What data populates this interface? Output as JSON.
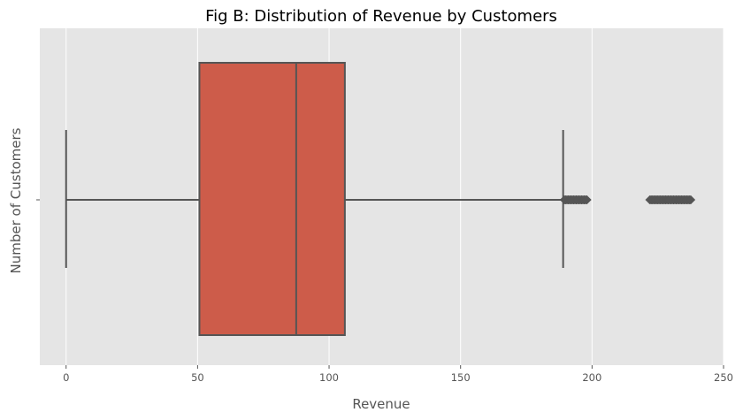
{
  "chart_data": {
    "type": "box",
    "orientation": "horizontal",
    "title": "Fig B: Distribution of Revenue by Customers",
    "xlabel": "Revenue",
    "ylabel": "Number of Customers",
    "xlim": [
      -10,
      250
    ],
    "x_ticks": [
      0,
      50,
      100,
      150,
      200,
      250
    ],
    "y_ticks": [
      ""
    ],
    "grid": true,
    "background": "#e5e5e5",
    "gridline_color": "#ffffff",
    "box_color": "#cd5c4a",
    "line_color": "#555555",
    "series": [
      {
        "min": 0,
        "q1": 50.7,
        "median": 87.5,
        "q3": 106,
        "max": 189,
        "outliers": [
          189.5,
          190,
          190.5,
          191,
          191.5,
          192,
          192.5,
          193,
          193.5,
          194,
          194.5,
          195,
          195.5,
          196,
          196.5,
          197,
          197.5,
          198,
          222,
          222.5,
          223,
          223.5,
          224,
          224.5,
          225,
          225.5,
          226,
          226.5,
          227,
          227.5,
          228,
          228.5,
          229,
          229.5,
          230,
          230.5,
          231,
          231.5,
          232,
          232.5,
          233,
          233.5,
          234,
          234.5,
          235,
          235.5,
          236,
          236.5,
          237,
          237.5
        ]
      }
    ]
  }
}
